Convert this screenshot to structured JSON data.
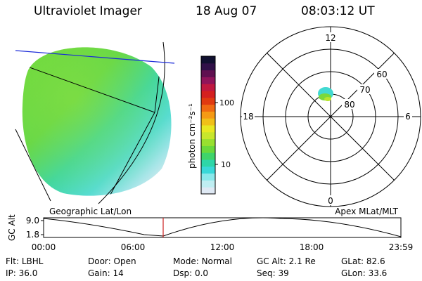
{
  "header": {
    "instrument": "Ultraviolet Imager",
    "date": "18 Aug 07",
    "time": "08:03:12 UT"
  },
  "colorbar": {
    "unit_label": "photon cm⁻²s⁻¹",
    "ticks": [
      "100",
      "10"
    ],
    "colors": [
      "#dfe9f4",
      "#bfeef2",
      "#8ae8ea",
      "#39d8d8",
      "#2ed6a8",
      "#3fd46a",
      "#6ad93c",
      "#98e030",
      "#c8e62c",
      "#e8e822",
      "#f0c018",
      "#f59a14",
      "#f06a12",
      "#e03a10",
      "#d42020",
      "#c01840",
      "#90145a",
      "#601050",
      "#301048",
      "#101030"
    ]
  },
  "polar": {
    "mlt_labels": {
      "top": "12",
      "left": "18",
      "right": "6",
      "bottom": "0"
    },
    "lat_labels": [
      "60",
      "70",
      "80"
    ]
  },
  "timeline": {
    "left_label": "Geographic Lat/Lon",
    "right_label": "Apex MLat/MLT",
    "y_axis_label": "GC Alt",
    "y_ticks": [
      "9.0",
      "1.8"
    ],
    "x_ticks": [
      "00:00",
      "06:00",
      "12:00",
      "18:00",
      "23:59"
    ],
    "marker_time": "08:03"
  },
  "info": {
    "filter_label": "Flt:",
    "filter_value": "LBHL",
    "door_label": "Door:",
    "door_value": "Open",
    "mode_label": "Mode:",
    "mode_value": "Normal",
    "gcalt_label": "GC Alt:",
    "gcalt_value": "2.1 Re",
    "glat_label": "GLat:",
    "glat_value": "82.6",
    "ip_label": "IP:",
    "ip_value": "36.0",
    "gain_label": "Gain:",
    "gain_value": "14",
    "dsp_label": "Dsp:",
    "dsp_value": "0.0",
    "seq_label": "Seq:",
    "seq_value": "39",
    "glon_label": "GLon:",
    "glon_value": "33.6"
  }
}
